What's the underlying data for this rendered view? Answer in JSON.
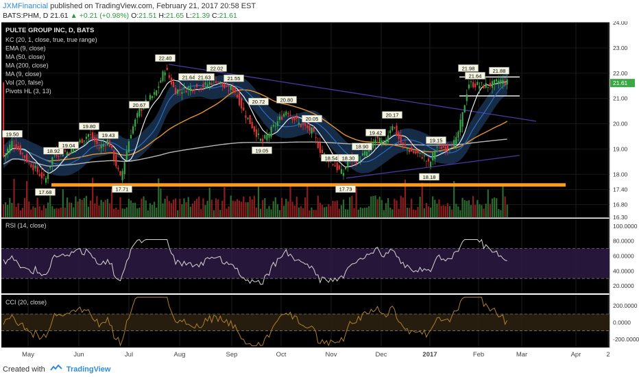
{
  "header": {
    "author": "JXMFinancial",
    "published": "published on TradingView.com, February 21, 2017 20:58 EST",
    "symbol": "BATS:PHM, D",
    "last": "21.61",
    "change": "+0.21 (+0.98%)",
    "o_label": "O:",
    "o_value": "21.51",
    "h_label": "H:",
    "h_value": "21.65",
    "l_label": "L:",
    "l_value": "21.39",
    "c_label": "C:",
    "c_value": "21.61"
  },
  "footer": {
    "created_with": "Created with",
    "brand": "TradingView"
  },
  "colors": {
    "panel_bg": "#000000",
    "candle_up": "#3aa845",
    "candle_down": "#e03535",
    "ema": "#2c6fc0",
    "ma50": "#e8952e",
    "ma200": "#b8b8b8",
    "ma9": "#ffffff",
    "kc_fill": "#1c3a5e",
    "support": "#ff9d1a",
    "trendline": "#4a3aa6",
    "rsi_line": "#d8d8d8",
    "rsi_band": "#2a1840",
    "cci_line": "#b0822c",
    "cci_band": "#2a2010"
  },
  "chart_data": {
    "type": "candlestick",
    "title": "PULTE GROUP INC, D, BATS",
    "indicator_labels": [
      "KC (20, 1, close, true, true range)",
      "EMA (9, close)",
      "MA (50, close)",
      "MA (200, close)",
      "MA (9, close)",
      "Vol (20, false)",
      "Pivots HL (3, 13)"
    ],
    "x_ticks": [
      "May",
      "Jun",
      "Jul",
      "Aug",
      "Sep",
      "Oct",
      "Nov",
      "Dec",
      "2017",
      "Feb",
      "Mar",
      "Apr",
      "2"
    ],
    "price_axis": {
      "ticks": [
        "24.00",
        "23.00",
        "22.00",
        "21.00",
        "20.00",
        "19.00",
        "18.00",
        "17.40",
        "16.80",
        "16.30"
      ],
      "range": [
        16.3,
        24.0
      ]
    },
    "last_price_label": "21.61",
    "rsi": {
      "label": "RSI (14, close)",
      "ticks": [
        "100.0000",
        "80.0000",
        "60.0000",
        "40.0000",
        "20.0000"
      ],
      "range": [
        10,
        110
      ],
      "bands": [
        30,
        70
      ]
    },
    "cci": {
      "label": "CCI (20, close)",
      "ticks": [
        "200.0000",
        "0.0000",
        "-200.0000"
      ],
      "range": [
        -300,
        330
      ],
      "bands": [
        -100,
        100
      ]
    },
    "pivots": [
      {
        "label": "19.50",
        "x": 18,
        "y": 19.6
      },
      {
        "label": "18.92",
        "x": 78,
        "y": 18.93
      },
      {
        "label": "19.04",
        "x": 100,
        "y": 19.15
      },
      {
        "label": "19.80",
        "x": 130,
        "y": 19.9
      },
      {
        "label": "19.43",
        "x": 158,
        "y": 19.55
      },
      {
        "label": "20.67",
        "x": 203,
        "y": 20.75
      },
      {
        "label": "22.40",
        "x": 241,
        "y": 22.6
      },
      {
        "label": "21.64",
        "x": 275,
        "y": 21.85
      },
      {
        "label": "21.63",
        "x": 298,
        "y": 21.85
      },
      {
        "label": "22.02",
        "x": 316,
        "y": 22.2
      },
      {
        "label": "21.55",
        "x": 341,
        "y": 21.8
      },
      {
        "label": "20.72",
        "x": 377,
        "y": 20.88
      },
      {
        "label": "20.80",
        "x": 418,
        "y": 20.95
      },
      {
        "label": "19.05",
        "x": 382,
        "y": 18.95
      },
      {
        "label": "20.05",
        "x": 455,
        "y": 20.2
      },
      {
        "label": "18.54",
        "x": 483,
        "y": 18.65
      },
      {
        "label": "18.30",
        "x": 508,
        "y": 18.65
      },
      {
        "label": "18.90",
        "x": 528,
        "y": 19.1
      },
      {
        "label": "19.42",
        "x": 548,
        "y": 19.65
      },
      {
        "label": "20.17",
        "x": 572,
        "y": 20.35
      },
      {
        "label": "19.15",
        "x": 636,
        "y": 19.35
      },
      {
        "label": "18.18",
        "x": 626,
        "y": 17.9
      },
      {
        "label": "21.98",
        "x": 683,
        "y": 22.2
      },
      {
        "label": "21.64",
        "x": 693,
        "y": 21.9
      },
      {
        "label": "21.88",
        "x": 728,
        "y": 22.1
      },
      {
        "label": "17.68",
        "x": 66,
        "y": 17.3
      },
      {
        "label": "17.71",
        "x": 178,
        "y": 17.42
      },
      {
        "label": "17.73",
        "x": 504,
        "y": 17.42
      }
    ]
  }
}
